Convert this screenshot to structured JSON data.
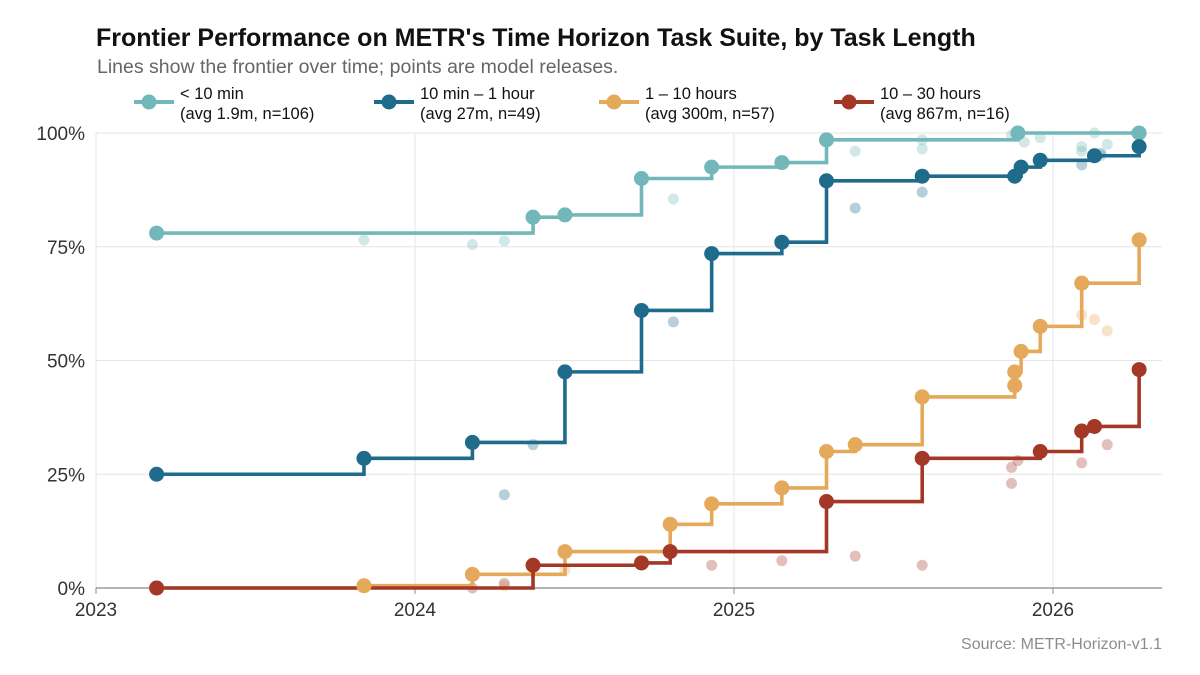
{
  "header": {
    "title": "Frontier Performance on METR's Time Horizon Task Suite, by Task Length",
    "subtitle": "Lines show the frontier over time; points are model releases."
  },
  "source": "Source: METR-Horizon-v1.1",
  "chart_data": {
    "type": "line",
    "step": true,
    "title": "Frontier Performance on METR's Time Horizon Task Suite, by Task Length",
    "subtitle": "Lines show the frontier over time; points are model releases.",
    "xlabel": "",
    "ylabel": "",
    "x_ticks": [
      "2023",
      "2024",
      "2025",
      "2026"
    ],
    "y_ticks": [
      "0%",
      "25%",
      "50%",
      "75%",
      "100%"
    ],
    "xlim": [
      2023.0,
      2026.33
    ],
    "ylim": [
      0,
      100
    ],
    "grid": true,
    "legend_position": "top",
    "series": [
      {
        "key": "short",
        "name": "< 10 min",
        "detail": "(avg 1.9m, n=106)",
        "color": "#72b7b9",
        "frontier": [
          [
            2023.19,
            78
          ],
          [
            2024.37,
            81.5
          ],
          [
            2024.47,
            82
          ],
          [
            2024.71,
            90
          ],
          [
            2024.93,
            92.5
          ],
          [
            2025.15,
            93.5
          ],
          [
            2025.29,
            98.5
          ],
          [
            2025.89,
            100
          ],
          [
            2026.27,
            100
          ]
        ],
        "points": [
          [
            2023.84,
            76.5
          ],
          [
            2024.18,
            75.5
          ],
          [
            2024.28,
            76.3
          ],
          [
            2024.81,
            85.5
          ],
          [
            2025.38,
            96
          ],
          [
            2025.59,
            96.5
          ],
          [
            2025.59,
            98.5
          ],
          [
            2025.87,
            99.5
          ],
          [
            2025.91,
            98
          ],
          [
            2025.96,
            99
          ],
          [
            2026.09,
            97
          ],
          [
            2026.09,
            96
          ],
          [
            2026.13,
            100
          ],
          [
            2026.15,
            95
          ],
          [
            2026.17,
            97.5
          ],
          [
            2026.26,
            100
          ]
        ]
      },
      {
        "key": "mid",
        "name": "10 min – 1 hour",
        "detail": "(avg 27m, n=49)",
        "color": "#1e6b8b",
        "frontier": [
          [
            2023.19,
            25
          ],
          [
            2023.84,
            28.5
          ],
          [
            2024.18,
            32
          ],
          [
            2024.47,
            47.5
          ],
          [
            2024.71,
            61
          ],
          [
            2024.93,
            73.5
          ],
          [
            2025.15,
            76
          ],
          [
            2025.29,
            89.5
          ],
          [
            2025.59,
            90.5
          ],
          [
            2025.88,
            90.5
          ],
          [
            2025.9,
            92.5
          ],
          [
            2025.96,
            94
          ],
          [
            2026.13,
            95
          ],
          [
            2026.27,
            97
          ]
        ],
        "points": [
          [
            2024.28,
            20.5
          ],
          [
            2024.37,
            31.5
          ],
          [
            2024.81,
            58.5
          ],
          [
            2025.38,
            83.5
          ],
          [
            2025.59,
            87
          ],
          [
            2026.09,
            93
          ],
          [
            2026.15,
            95.5
          ]
        ]
      },
      {
        "key": "long",
        "name": "1 – 10 hours",
        "detail": "(avg 300m, n=57)",
        "color": "#e4a95a",
        "frontier": [
          [
            2023.19,
            0
          ],
          [
            2023.84,
            0.5
          ],
          [
            2024.18,
            3
          ],
          [
            2024.47,
            8
          ],
          [
            2024.8,
            14
          ],
          [
            2024.93,
            18.5
          ],
          [
            2025.15,
            22
          ],
          [
            2025.29,
            30
          ],
          [
            2025.38,
            31.5
          ],
          [
            2025.59,
            42
          ],
          [
            2025.88,
            44.5
          ],
          [
            2025.88,
            47.5
          ],
          [
            2025.9,
            52
          ],
          [
            2025.96,
            57.5
          ],
          [
            2026.09,
            67
          ],
          [
            2026.27,
            76.5
          ]
        ],
        "points": [
          [
            2024.28,
            0.5
          ],
          [
            2024.47,
            4
          ],
          [
            2026.09,
            60
          ],
          [
            2026.13,
            59
          ],
          [
            2026.17,
            56.5
          ]
        ]
      },
      {
        "key": "xlong",
        "name": "10 – 30 hours",
        "detail": "(avg 867m, n=16)",
        "color": "#a33827",
        "frontier": [
          [
            2023.19,
            0
          ],
          [
            2024.37,
            5
          ],
          [
            2024.71,
            5.5
          ],
          [
            2024.8,
            8
          ],
          [
            2025.29,
            19
          ],
          [
            2025.59,
            28.5
          ],
          [
            2025.96,
            30
          ],
          [
            2026.09,
            34.5
          ],
          [
            2026.13,
            35.5
          ],
          [
            2026.27,
            48
          ]
        ],
        "points": [
          [
            2024.18,
            0
          ],
          [
            2024.28,
            1
          ],
          [
            2024.93,
            5
          ],
          [
            2025.15,
            6
          ],
          [
            2025.38,
            7
          ],
          [
            2025.59,
            5
          ],
          [
            2025.87,
            23
          ],
          [
            2025.87,
            26.5
          ],
          [
            2025.89,
            28
          ],
          [
            2026.09,
            27.5
          ],
          [
            2026.17,
            31.5
          ]
        ]
      }
    ]
  }
}
